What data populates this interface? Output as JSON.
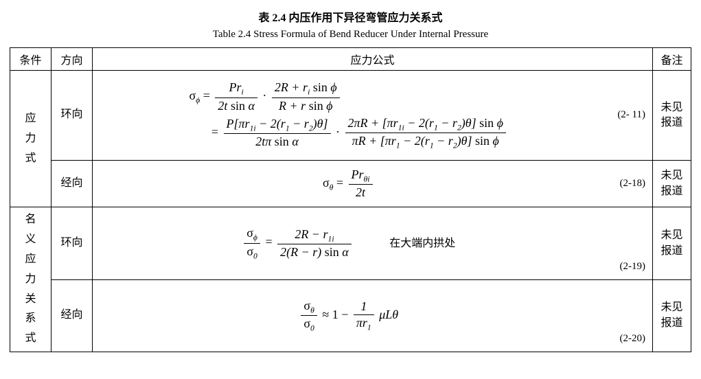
{
  "titles": {
    "cn": "表 2.4    内压作用下异径弯管应力关系式",
    "en": "Table 2.4    Stress Formula of Bend Reducer Under Internal Pressure"
  },
  "headers": {
    "condition": "条件",
    "direction": "方向",
    "formula": "应力公式",
    "note": "备注"
  },
  "groups": [
    {
      "label": "应力式"
    },
    {
      "label": "名义应力关系式"
    }
  ],
  "rows": [
    {
      "direction": "环向",
      "note": "未见报道",
      "eqnum": "(2- 11)"
    },
    {
      "direction": "经向",
      "note": "未见报道",
      "eqnum": "(2-18)"
    },
    {
      "direction": "环向",
      "note": "未见报道",
      "eqnum": "(2-19)",
      "extra": "在大端内拱处"
    },
    {
      "direction": "经向",
      "note": "未见报道",
      "eqnum": "(2-20)"
    }
  ],
  "formulas": {
    "r1": {
      "lhs_sub": "ϕ",
      "l1_f1_num": "Pr",
      "l1_f1_num_sub": "i",
      "l1_f1_den": "2t sin α",
      "l1_f2_num": "2R + r_i sin ϕ",
      "l1_f2_den": "R + r sin ϕ",
      "l2_f1_num": "P[πr_{1i} − 2(r_1 − r_2)θ]",
      "l2_f1_den": "2tπ sin α",
      "l2_f2_num": "2πR + [πr_{1i} − 2(r_1 − r_2)θ] sin ϕ",
      "l2_f2_den": "πR + [πr_1 − 2(r_1 − r_2)θ] sin ϕ"
    },
    "r2": {
      "lhs_sub": "θ",
      "f_num": "Pr",
      "f_num_sub": "θi",
      "f_den": "2t"
    },
    "r3": {
      "lhs_num_sub": "ϕ",
      "lhs_den_sub": "0",
      "rhs_num": "2R − r_{1i}",
      "rhs_den": "2(R − r) sin α"
    },
    "r4": {
      "lhs_num_sub": "θ",
      "lhs_den_sub": "0",
      "approx": "≈ 1 −",
      "f_num": "1",
      "f_den": "πr_1",
      "tail": "μLθ"
    }
  }
}
